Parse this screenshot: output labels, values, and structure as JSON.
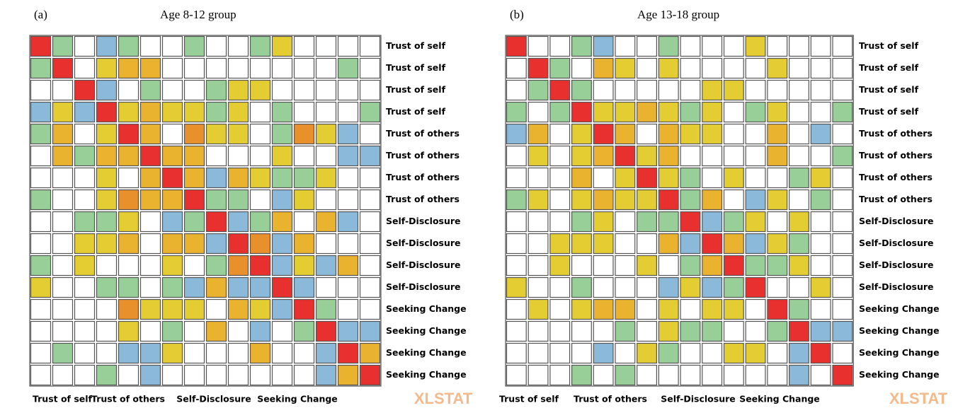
{
  "chart_data": [
    {
      "type": "heatmap",
      "panel": "(a)",
      "title": "Age 8-12 group",
      "watermark": "XLSTAT",
      "palette": {
        "R": "#e8312f",
        "O": "#e8902c",
        "A": "#e9b22f",
        "Y": "#e3cd33",
        "G": "#98cf98",
        "B": "#8ab9d9",
        "W": "#ffffff"
      },
      "row_labels": [
        "Trust of self",
        "Trust of self",
        "Trust of self",
        "Trust of self",
        "Trust of others",
        "Trust of others",
        "Trust of others",
        "Trust of others",
        "Self-Disclosure",
        "Self-Disclosure",
        "Self-Disclosure",
        "Self-Disclosure",
        "Seeking Change",
        "Seeking Change",
        "Seeking Change",
        "Seeking Change"
      ],
      "x_labels": [
        "Trust of self",
        "Trust of others",
        "Self-Disclosure",
        "Seeking Change"
      ],
      "cells": [
        [
          "R",
          "G",
          "W",
          "B",
          "G",
          "W",
          "W",
          "G",
          "W",
          "W",
          "G",
          "Y",
          "W",
          "W",
          "W",
          "W"
        ],
        [
          "G",
          "R",
          "W",
          "Y",
          "A",
          "A",
          "W",
          "W",
          "W",
          "W",
          "W",
          "W",
          "W",
          "W",
          "G",
          "W"
        ],
        [
          "W",
          "W",
          "R",
          "B",
          "W",
          "G",
          "W",
          "W",
          "G",
          "Y",
          "Y",
          "W",
          "W",
          "W",
          "W",
          "W"
        ],
        [
          "B",
          "Y",
          "B",
          "R",
          "Y",
          "A",
          "Y",
          "Y",
          "G",
          "Y",
          "W",
          "G",
          "W",
          "W",
          "W",
          "G"
        ],
        [
          "G",
          "A",
          "W",
          "Y",
          "R",
          "A",
          "W",
          "O",
          "Y",
          "Y",
          "W",
          "G",
          "O",
          "Y",
          "B",
          "W"
        ],
        [
          "W",
          "A",
          "G",
          "A",
          "A",
          "R",
          "A",
          "A",
          "W",
          "W",
          "W",
          "Y",
          "W",
          "W",
          "B",
          "B"
        ],
        [
          "W",
          "W",
          "W",
          "Y",
          "W",
          "A",
          "R",
          "A",
          "B",
          "A",
          "Y",
          "G",
          "G",
          "Y",
          "W",
          "W"
        ],
        [
          "G",
          "W",
          "W",
          "Y",
          "O",
          "A",
          "A",
          "R",
          "G",
          "G",
          "W",
          "B",
          "Y",
          "W",
          "W",
          "W"
        ],
        [
          "W",
          "W",
          "G",
          "G",
          "Y",
          "W",
          "B",
          "G",
          "R",
          "B",
          "G",
          "A",
          "W",
          "A",
          "B",
          "W"
        ],
        [
          "W",
          "W",
          "Y",
          "Y",
          "A",
          "W",
          "A",
          "A",
          "B",
          "R",
          "O",
          "B",
          "A",
          "W",
          "W",
          "W"
        ],
        [
          "G",
          "W",
          "Y",
          "W",
          "W",
          "W",
          "Y",
          "W",
          "G",
          "O",
          "R",
          "B",
          "Y",
          "B",
          "A",
          "W"
        ],
        [
          "Y",
          "W",
          "W",
          "G",
          "G",
          "W",
          "G",
          "B",
          "A",
          "B",
          "B",
          "R",
          "B",
          "W",
          "W",
          "W"
        ],
        [
          "W",
          "W",
          "W",
          "W",
          "O",
          "Y",
          "Y",
          "Y",
          "W",
          "A",
          "Y",
          "B",
          "R",
          "G",
          "W",
          "W"
        ],
        [
          "W",
          "W",
          "W",
          "W",
          "Y",
          "W",
          "G",
          "W",
          "A",
          "W",
          "B",
          "W",
          "G",
          "R",
          "B",
          "B"
        ],
        [
          "W",
          "G",
          "W",
          "W",
          "B",
          "B",
          "Y",
          "W",
          "W",
          "W",
          "A",
          "W",
          "W",
          "B",
          "R",
          "A"
        ],
        [
          "W",
          "W",
          "W",
          "G",
          "W",
          "B",
          "W",
          "W",
          "W",
          "W",
          "W",
          "W",
          "W",
          "B",
          "A",
          "R"
        ]
      ]
    },
    {
      "type": "heatmap",
      "panel": "(b)",
      "title": "Age 13-18 group",
      "watermark": "XLSTAT",
      "palette": {
        "R": "#e8312f",
        "O": "#e8902c",
        "A": "#e9b22f",
        "Y": "#e3cd33",
        "G": "#98cf98",
        "B": "#8ab9d9",
        "W": "#ffffff"
      },
      "row_labels": [
        "Trust of self",
        "Trust of self",
        "Trust of self",
        "Trust of self",
        "Trust of others",
        "Trust of others",
        "Trust of others",
        "Trust of others",
        "Self-Disclosure",
        "Self-Disclosure",
        "Self-Disclosure",
        "Self-Disclosure",
        "Seeking Change",
        "Seeking Change",
        "Seeking Change",
        "Seeking Change"
      ],
      "x_labels": [
        "Trust of self",
        "Trust of others",
        "Self-Disclosure",
        "Seeking Change"
      ],
      "cells": [
        [
          "R",
          "W",
          "W",
          "G",
          "B",
          "W",
          "W",
          "G",
          "W",
          "W",
          "W",
          "Y",
          "W",
          "W",
          "W",
          "W"
        ],
        [
          "W",
          "R",
          "G",
          "W",
          "A",
          "Y",
          "W",
          "Y",
          "W",
          "W",
          "W",
          "W",
          "Y",
          "W",
          "W",
          "W"
        ],
        [
          "W",
          "G",
          "R",
          "G",
          "W",
          "W",
          "W",
          "W",
          "W",
          "Y",
          "Y",
          "W",
          "W",
          "W",
          "W",
          "W"
        ],
        [
          "G",
          "W",
          "G",
          "R",
          "Y",
          "Y",
          "A",
          "Y",
          "G",
          "Y",
          "W",
          "G",
          "Y",
          "W",
          "W",
          "G"
        ],
        [
          "B",
          "A",
          "W",
          "Y",
          "R",
          "A",
          "W",
          "A",
          "Y",
          "Y",
          "W",
          "W",
          "A",
          "W",
          "B",
          "W"
        ],
        [
          "W",
          "Y",
          "W",
          "Y",
          "A",
          "R",
          "Y",
          "A",
          "W",
          "W",
          "W",
          "W",
          "A",
          "W",
          "W",
          "G"
        ],
        [
          "W",
          "W",
          "W",
          "A",
          "W",
          "Y",
          "R",
          "Y",
          "G",
          "W",
          "Y",
          "W",
          "W",
          "G",
          "Y",
          "W"
        ],
        [
          "G",
          "Y",
          "W",
          "Y",
          "A",
          "Y",
          "Y",
          "R",
          "G",
          "A",
          "W",
          "B",
          "Y",
          "W",
          "G",
          "W"
        ],
        [
          "W",
          "W",
          "W",
          "G",
          "Y",
          "W",
          "G",
          "G",
          "R",
          "B",
          "G",
          "Y",
          "W",
          "Y",
          "W",
          "W"
        ],
        [
          "W",
          "W",
          "Y",
          "Y",
          "Y",
          "W",
          "W",
          "A",
          "B",
          "R",
          "A",
          "B",
          "Y",
          "G",
          "W",
          "W"
        ],
        [
          "W",
          "W",
          "Y",
          "W",
          "W",
          "W",
          "Y",
          "W",
          "G",
          "A",
          "R",
          "G",
          "G",
          "Y",
          "W",
          "W"
        ],
        [
          "Y",
          "W",
          "W",
          "G",
          "W",
          "W",
          "W",
          "B",
          "Y",
          "B",
          "G",
          "R",
          "W",
          "W",
          "Y",
          "W"
        ],
        [
          "W",
          "Y",
          "W",
          "Y",
          "A",
          "A",
          "W",
          "Y",
          "W",
          "Y",
          "Y",
          "W",
          "R",
          "G",
          "W",
          "W"
        ],
        [
          "W",
          "W",
          "W",
          "W",
          "W",
          "G",
          "W",
          "Y",
          "G",
          "G",
          "W",
          "W",
          "G",
          "R",
          "B",
          "B"
        ],
        [
          "W",
          "W",
          "W",
          "W",
          "B",
          "W",
          "Y",
          "G",
          "W",
          "W",
          "Y",
          "Y",
          "W",
          "B",
          "R",
          "W"
        ],
        [
          "W",
          "W",
          "W",
          "G",
          "W",
          "G",
          "W",
          "W",
          "W",
          "W",
          "W",
          "W",
          "W",
          "B",
          "W",
          "R"
        ]
      ]
    }
  ]
}
